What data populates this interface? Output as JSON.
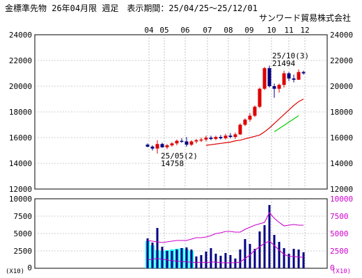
{
  "header": {
    "title": "金標準先物 26年04月限 週足　表示期間：25/04/25～25/12/01",
    "company": "サンワード貿易株式会社"
  },
  "chart_data": [
    {
      "type": "candlestick",
      "period_label": "週足",
      "x_ticks": [
        "04",
        "05",
        "06",
        "07",
        "08",
        "09",
        "10",
        "11",
        "12"
      ],
      "y_ticks": [
        12000,
        14000,
        16000,
        18000,
        20000,
        22000,
        24000
      ],
      "ylim": [
        12000,
        24000
      ],
      "colors": {
        "up": "#dd0000",
        "down": "#000080",
        "ma_short": "#dd0000",
        "ma_long": "#00cc00",
        "grid": "#999999"
      },
      "candles": [
        {
          "open": 15450,
          "high": 15550,
          "low": 15250,
          "close": 15300
        },
        {
          "open": 15300,
          "high": 15400,
          "low": 15000,
          "close": 15150
        },
        {
          "open": 15150,
          "high": 15800,
          "low": 14758,
          "close": 15500
        },
        {
          "open": 15500,
          "high": 15600,
          "low": 15200,
          "close": 15250
        },
        {
          "open": 15250,
          "high": 15500,
          "low": 15100,
          "close": 15400
        },
        {
          "open": 15400,
          "high": 15650,
          "low": 15300,
          "close": 15550
        },
        {
          "open": 15550,
          "high": 15850,
          "low": 15400,
          "close": 15750
        },
        {
          "open": 15750,
          "high": 15950,
          "low": 15600,
          "close": 15700
        },
        {
          "open": 15700,
          "high": 16050,
          "low": 15300,
          "close": 15450
        },
        {
          "open": 15450,
          "high": 15800,
          "low": 15350,
          "close": 15700
        },
        {
          "open": 15700,
          "high": 15900,
          "low": 15550,
          "close": 15800
        },
        {
          "open": 15800,
          "high": 16000,
          "low": 15650,
          "close": 15850
        },
        {
          "open": 15850,
          "high": 16150,
          "low": 15700,
          "close": 16000
        },
        {
          "open": 16000,
          "high": 16150,
          "low": 15800,
          "close": 15900
        },
        {
          "open": 15900,
          "high": 16150,
          "low": 15800,
          "close": 16050
        },
        {
          "open": 16050,
          "high": 16200,
          "low": 15850,
          "close": 15950
        },
        {
          "open": 15950,
          "high": 16300,
          "low": 15850,
          "close": 16150
        },
        {
          "open": 16150,
          "high": 16350,
          "low": 15950,
          "close": 16050
        },
        {
          "open": 16050,
          "high": 16400,
          "low": 15900,
          "close": 16250
        },
        {
          "open": 16250,
          "high": 17100,
          "low": 16200,
          "close": 17000
        },
        {
          "open": 17000,
          "high": 17500,
          "low": 16900,
          "close": 17400
        },
        {
          "open": 17400,
          "high": 17900,
          "low": 17250,
          "close": 17700
        },
        {
          "open": 17700,
          "high": 18500,
          "low": 17600,
          "close": 18400
        },
        {
          "open": 18400,
          "high": 19900,
          "low": 18300,
          "close": 19800
        },
        {
          "open": 19800,
          "high": 21494,
          "low": 19700,
          "close": 21400
        },
        {
          "open": 21400,
          "high": 21600,
          "low": 19900,
          "close": 20000
        },
        {
          "open": 20000,
          "high": 20200,
          "low": 19100,
          "close": 19800
        },
        {
          "open": 19800,
          "high": 20200,
          "low": 19500,
          "close": 20100
        },
        {
          "open": 20100,
          "high": 21200,
          "low": 19900,
          "close": 21000
        },
        {
          "open": 21000,
          "high": 21100,
          "low": 20400,
          "close": 20600
        },
        {
          "open": 20600,
          "high": 20900,
          "low": 20300,
          "close": 20500
        },
        {
          "open": 20500,
          "high": 21300,
          "low": 20500,
          "close": 21100
        },
        {
          "open": 21100,
          "high": 21200,
          "low": 20900,
          "close": 21000
        }
      ],
      "ma_short": [
        null,
        null,
        null,
        null,
        null,
        null,
        null,
        null,
        null,
        null,
        null,
        null,
        15400,
        15450,
        15500,
        15550,
        15600,
        15650,
        15750,
        15800,
        15900,
        16000,
        16100,
        16200,
        16450,
        16750,
        17100,
        17450,
        17800,
        18150,
        18500,
        18800,
        19000
      ],
      "ma_long": [
        null,
        null,
        null,
        null,
        null,
        null,
        null,
        null,
        null,
        null,
        null,
        null,
        null,
        null,
        null,
        null,
        null,
        null,
        null,
        null,
        null,
        null,
        null,
        null,
        null,
        null,
        16450,
        16700,
        16950,
        17200,
        17450,
        17700,
        null
      ],
      "annotations": [
        {
          "label": "25/10(3)",
          "value": "21494"
        },
        {
          "label": "25/05(2)",
          "value": "14758"
        }
      ]
    },
    {
      "type": "bar",
      "y_ticks": [
        0,
        2500,
        5000,
        7500,
        10000
      ],
      "ylim": [
        0,
        10000
      ],
      "unit_label": "(X10)",
      "colors": {
        "volume": "#000080",
        "open_interest": "#00ffff",
        "oi_line": "#cc00cc"
      },
      "volume": [
        4300,
        3700,
        5800,
        3100,
        2500,
        2500,
        2700,
        2900,
        3000,
        2700,
        1700,
        1900,
        2400,
        2900,
        2100,
        1800,
        2200,
        1900,
        1400,
        2700,
        4200,
        3500,
        2800,
        5300,
        6200,
        9100,
        4800,
        3800,
        2900,
        2100,
        2800,
        2700,
        2300
      ],
      "open_interest": [
        3900,
        3300,
        2600,
        2500,
        2600,
        2700,
        2800,
        2900,
        2700,
        2500
      ],
      "oi_line": [
        4000,
        3900,
        3800,
        3700,
        3800,
        3900,
        4000,
        4000,
        4000,
        4200,
        4400,
        4400,
        4500,
        4700,
        5000,
        5100,
        5300,
        5300,
        5200,
        5200,
        5600,
        5900,
        6200,
        6400,
        6600,
        8000,
        7200,
        6600,
        6100,
        6200,
        6300,
        6200,
        6200
      ],
      "oi_line2": [
        1200,
        1300,
        1400,
        1300,
        1200,
        1100,
        1000,
        1000,
        900,
        900,
        800,
        900,
        800,
        900,
        900,
        800,
        800,
        800,
        800,
        900,
        1400,
        1900,
        2600,
        3100,
        3600,
        3900,
        3300,
        2600,
        2000,
        1700,
        1700,
        1600,
        1600
      ]
    }
  ]
}
